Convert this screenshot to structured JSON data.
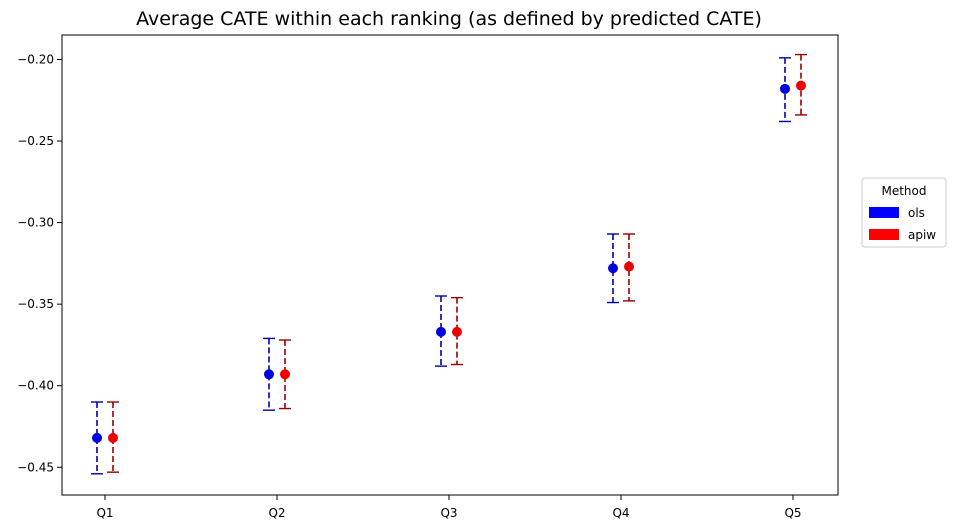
{
  "chart_data": {
    "type": "scatter",
    "title": "Average CATE within each ranking (as defined by predicted CATE)",
    "xlabel": "",
    "ylabel": "",
    "categories": [
      "Q1",
      "Q2",
      "Q3",
      "Q4",
      "Q5"
    ],
    "ylim": [
      -0.467,
      -0.185
    ],
    "yticks": [
      -0.45,
      -0.4,
      -0.35,
      -0.3,
      -0.25,
      -0.2
    ],
    "ytick_labels": [
      "−0.45",
      "−0.40",
      "−0.35",
      "−0.30",
      "−0.25",
      "−0.20"
    ],
    "grid": false,
    "legend_placement": "right",
    "legend_title": "Method",
    "series": [
      {
        "name": "ols",
        "point_color": "#0000dd",
        "errorbar_color": "#0000aa",
        "legend_color": "#0000ff",
        "values": [
          -0.432,
          -0.393,
          -0.367,
          -0.328,
          -0.218
        ],
        "lower": [
          -0.454,
          -0.415,
          -0.388,
          -0.349,
          -0.238
        ],
        "upper": [
          -0.41,
          -0.371,
          -0.345,
          -0.307,
          -0.199
        ]
      },
      {
        "name": "apiw",
        "point_color": "#ee0000",
        "errorbar_color": "#990000",
        "legend_color": "#ff0000",
        "values": [
          -0.432,
          -0.393,
          -0.367,
          -0.327,
          -0.216
        ],
        "lower": [
          -0.453,
          -0.414,
          -0.387,
          -0.348,
          -0.234
        ],
        "upper": [
          -0.41,
          -0.372,
          -0.346,
          -0.307,
          -0.197
        ]
      }
    ]
  }
}
